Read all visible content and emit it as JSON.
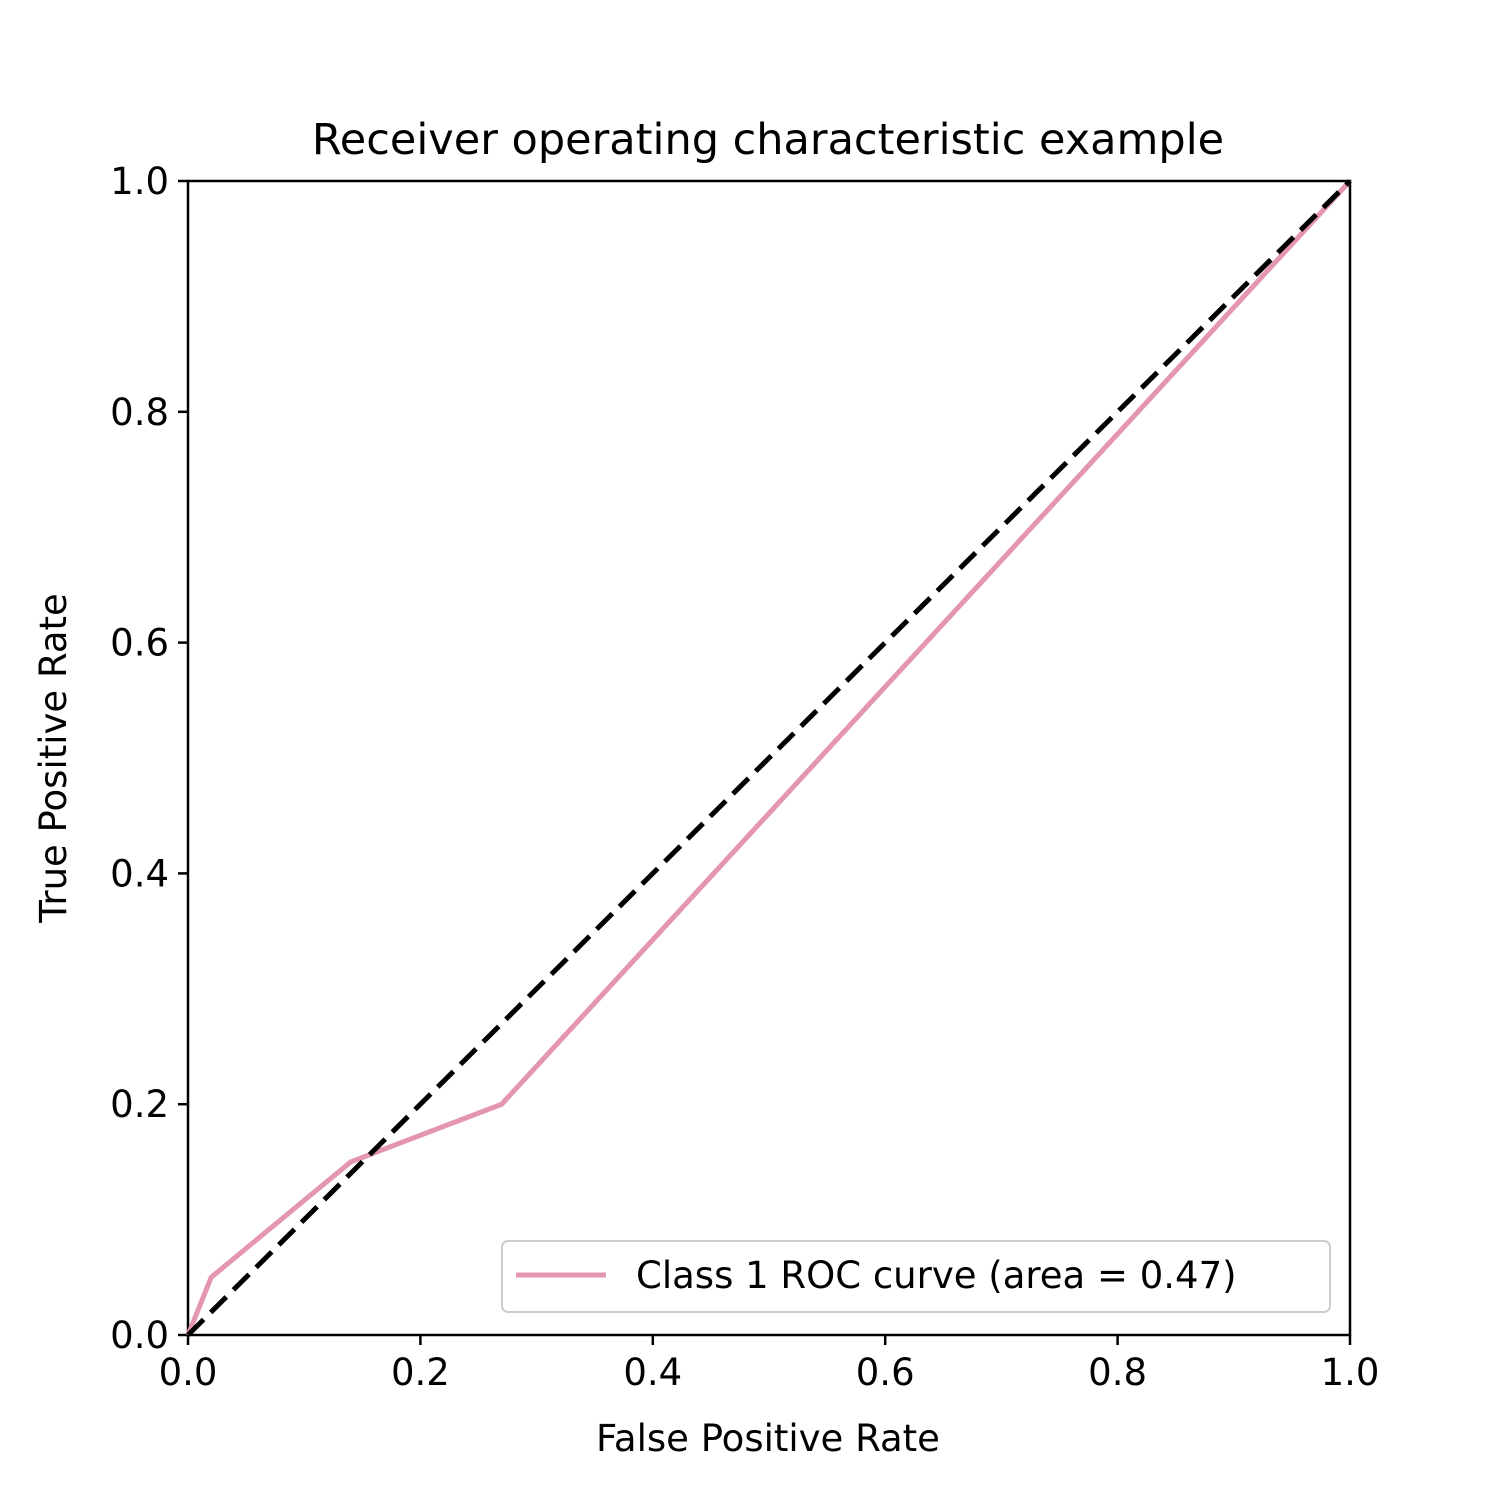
{
  "chart_data": {
    "type": "line",
    "title": "Receiver operating characteristic example",
    "xlabel": "False Positive Rate",
    "ylabel": "True Positive Rate",
    "xlim": [
      0.0,
      1.0
    ],
    "ylim": [
      0.0,
      1.0
    ],
    "grid": false,
    "legend_position": "lower-right",
    "x_ticks": [
      "0.0",
      "0.2",
      "0.4",
      "0.6",
      "0.8",
      "1.0"
    ],
    "y_ticks": [
      "0.0",
      "0.2",
      "0.4",
      "0.6",
      "0.8",
      "1.0"
    ],
    "series": [
      {
        "name": "Class 1 ROC curve (area = 0.47)",
        "color": "#e495b0",
        "style": "solid",
        "x": [
          0.0,
          0.02,
          0.14,
          0.27,
          1.0
        ],
        "y": [
          0.0,
          0.05,
          0.15,
          0.2,
          1.0
        ]
      },
      {
        "color": "#000000",
        "style": "dashed",
        "x": [
          0.0,
          1.0
        ],
        "y": [
          0.0,
          1.0
        ]
      }
    ]
  }
}
